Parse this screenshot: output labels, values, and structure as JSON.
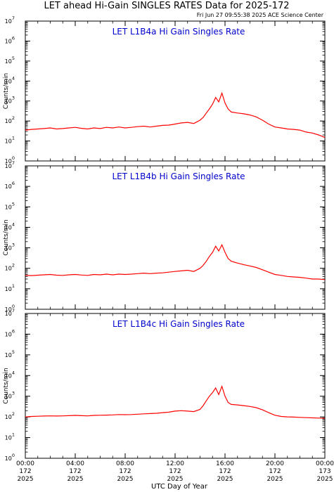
{
  "header": {
    "title": "LET ahead Hi-Gain SINGLES RATES Data for 2025-172",
    "timestamp": "Fri Jun 27 09:55:38 2025 ACE Science Center"
  },
  "colors": {
    "series": "#ff0000",
    "panel_title": "#0000cc",
    "axes": "#000000",
    "background": "#ffffff"
  },
  "chart_data": [
    {
      "type": "line",
      "title": "LET L1B4a Hi Gain Singles Rate",
      "ylabel": "Counts/min",
      "xlabel": "",
      "yscale": "log",
      "ylim": [
        1,
        10000000
      ],
      "ytick_exponents": [
        "0",
        "1",
        "2",
        "3",
        "4",
        "5",
        "6",
        "7"
      ],
      "xlim": [
        0,
        24
      ],
      "series": [
        {
          "x": [
            0,
            0.5,
            1,
            1.5,
            2,
            2.5,
            3,
            3.5,
            4,
            4.5,
            5,
            5.5,
            6,
            6.5,
            7,
            7.5,
            8,
            8.5,
            9,
            9.5,
            10,
            10.5,
            11,
            11.5,
            12,
            12.5,
            13,
            13.5,
            14,
            14.25,
            14.5,
            14.75,
            15,
            15.25,
            15.5,
            15.75,
            16,
            16.25,
            16.5,
            17,
            17.5,
            18,
            18.5,
            19,
            19.5,
            20,
            20.5,
            21,
            21.5,
            22,
            22.5,
            23,
            23.5,
            24
          ],
          "y": [
            35,
            38,
            40,
            42,
            45,
            40,
            42,
            45,
            48,
            43,
            40,
            45,
            42,
            48,
            45,
            50,
            45,
            48,
            52,
            55,
            50,
            55,
            60,
            62,
            70,
            80,
            85,
            75,
            110,
            150,
            250,
            400,
            700,
            1500,
            900,
            2500,
            800,
            400,
            280,
            250,
            230,
            200,
            160,
            110,
            70,
            50,
            45,
            40,
            38,
            35,
            28,
            25,
            20,
            15
          ]
        }
      ]
    },
    {
      "type": "line",
      "title": "LET L1B4b Hi Gain Singles Rate",
      "ylabel": "Counts/min",
      "xlabel": "",
      "yscale": "log",
      "ylim": [
        1,
        10000000
      ],
      "ytick_exponents": [
        "0",
        "1",
        "2",
        "3",
        "4",
        "5",
        "6",
        "7"
      ],
      "xlim": [
        0,
        24
      ],
      "series": [
        {
          "x": [
            0,
            0.5,
            1,
            1.5,
            2,
            2.5,
            3,
            3.5,
            4,
            4.5,
            5,
            5.5,
            6,
            6.5,
            7,
            7.5,
            8,
            8.5,
            9,
            9.5,
            10,
            10.5,
            11,
            11.5,
            12,
            12.5,
            13,
            13.5,
            14,
            14.25,
            14.5,
            14.75,
            15,
            15.25,
            15.5,
            15.75,
            16,
            16.25,
            16.5,
            17,
            17.5,
            18,
            18.5,
            19,
            19.5,
            20,
            20.5,
            21,
            21.5,
            22,
            22.5,
            23,
            23.5,
            24
          ],
          "y": [
            45,
            44,
            46,
            48,
            50,
            46,
            45,
            48,
            50,
            47,
            45,
            50,
            48,
            52,
            48,
            52,
            50,
            52,
            55,
            58,
            55,
            58,
            60,
            65,
            70,
            75,
            80,
            70,
            100,
            140,
            220,
            380,
            600,
            1200,
            700,
            1400,
            600,
            300,
            220,
            180,
            150,
            130,
            110,
            85,
            65,
            50,
            45,
            40,
            38,
            36,
            33,
            30,
            30,
            28
          ]
        }
      ]
    },
    {
      "type": "line",
      "title": "LET L1B4c Hi Gain Singles Rate",
      "ylabel": "Counts/min",
      "xlabel": "UTC Day of Year",
      "yscale": "log",
      "ylim": [
        1,
        10000000
      ],
      "ytick_exponents": [
        "0",
        "1",
        "2",
        "3",
        "4",
        "5",
        "6",
        "7"
      ],
      "xlim": [
        0,
        24
      ],
      "xticks": [
        {
          "x": 0,
          "time": "00:00",
          "doy": "172",
          "year": "2025"
        },
        {
          "x": 4,
          "time": "04:00",
          "doy": "172",
          "year": "2025"
        },
        {
          "x": 8,
          "time": "08:00",
          "doy": "172",
          "year": "2025"
        },
        {
          "x": 12,
          "time": "12:00",
          "doy": "172",
          "year": "2025"
        },
        {
          "x": 16,
          "time": "16:00",
          "doy": "172",
          "year": "2025"
        },
        {
          "x": 20,
          "time": "20:00",
          "doy": "172",
          "year": "2025"
        },
        {
          "x": 24,
          "time": "00:00",
          "doy": "173",
          "year": "2025"
        }
      ],
      "series": [
        {
          "x": [
            0,
            0.5,
            1,
            1.5,
            2,
            2.5,
            3,
            3.5,
            4,
            4.5,
            5,
            5.5,
            6,
            6.5,
            7,
            7.5,
            8,
            8.5,
            9,
            9.5,
            10,
            10.5,
            11,
            11.5,
            12,
            12.5,
            13,
            13.5,
            14,
            14.25,
            14.5,
            14.75,
            15,
            15.25,
            15.5,
            15.75,
            16,
            16.25,
            16.5,
            17,
            17.5,
            18,
            18.5,
            19,
            19.5,
            20,
            20.5,
            21,
            21.5,
            22,
            22.5,
            23,
            23.5,
            24
          ],
          "y": [
            100,
            105,
            108,
            110,
            112,
            110,
            112,
            115,
            118,
            115,
            112,
            118,
            120,
            122,
            125,
            130,
            128,
            130,
            135,
            140,
            145,
            150,
            160,
            170,
            190,
            200,
            190,
            180,
            230,
            350,
            600,
            1000,
            1500,
            2500,
            1200,
            3000,
            1000,
            500,
            400,
            380,
            350,
            320,
            280,
            220,
            160,
            120,
            105,
            100,
            98,
            95,
            92,
            90,
            88,
            85
          ]
        }
      ]
    }
  ]
}
